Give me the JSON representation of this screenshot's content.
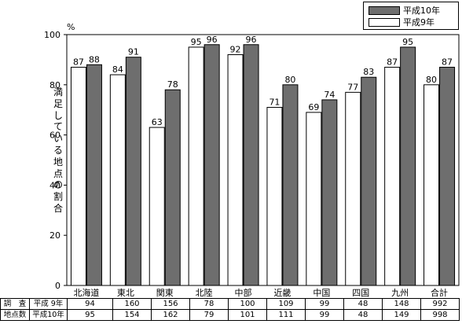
{
  "chart_data": {
    "type": "bar",
    "unit": "%",
    "ylabel": "満足している地点の割合",
    "categories": [
      "北海道",
      "東北",
      "関東",
      "北陸",
      "中部",
      "近畿",
      "中国",
      "四国",
      "九州",
      "合計"
    ],
    "ylim": [
      0,
      100
    ],
    "yticks": [
      0,
      20,
      40,
      60,
      80,
      100
    ],
    "grid": false,
    "legend_position": "top-right",
    "series": [
      {
        "name": "平成9年",
        "values": [
          87,
          84,
          63,
          95,
          92,
          71,
          69,
          77,
          87,
          80
        ],
        "color": "#ffffff"
      },
      {
        "name": "平成10年",
        "values": [
          88,
          91,
          78,
          96,
          96,
          80,
          74,
          83,
          95,
          87
        ],
        "color": "#6e6e6e"
      }
    ]
  },
  "legend": {
    "h10": "平成10年",
    "h9": "平成9年"
  },
  "count_table": {
    "stub_top": "調　査",
    "stub_bottom": "地点数",
    "rows": [
      {
        "label": "平成 9年",
        "values": [
          "94",
          "160",
          "156",
          "78",
          "100",
          "109",
          "99",
          "48",
          "148",
          "992"
        ]
      },
      {
        "label": "平成10年",
        "values": [
          "95",
          "154",
          "162",
          "79",
          "101",
          "111",
          "99",
          "48",
          "149",
          "998"
        ]
      }
    ]
  }
}
